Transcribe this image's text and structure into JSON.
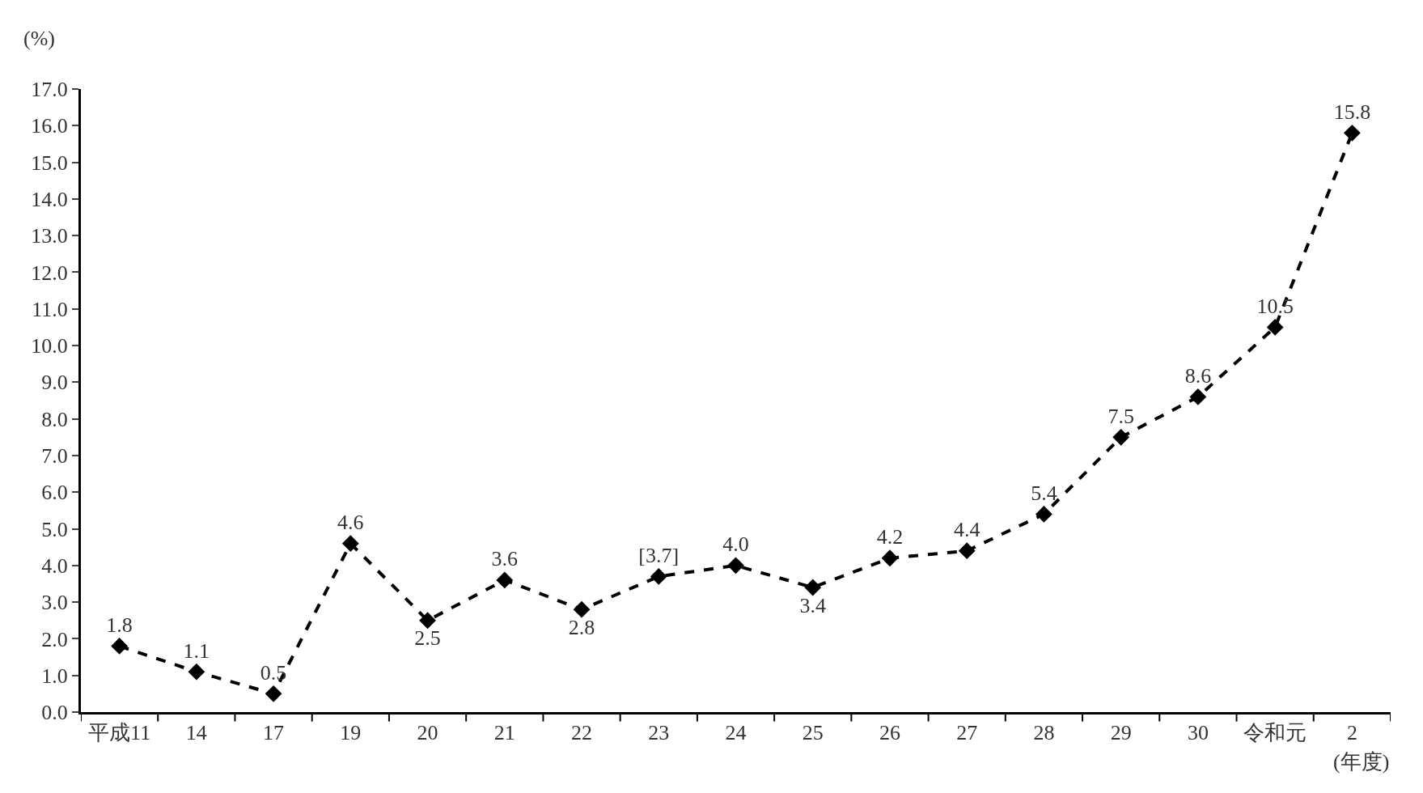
{
  "chart_data": {
    "type": "line",
    "xlabel": "(年度)",
    "ylabel": "(%)",
    "categories": [
      "平成11",
      "14",
      "17",
      "19",
      "20",
      "21",
      "22",
      "23",
      "24",
      "25",
      "26",
      "27",
      "28",
      "29",
      "30",
      "令和元",
      "2"
    ],
    "series": [
      {
        "color": "#000000",
        "values": [
          1.8,
          1.1,
          0.5,
          4.6,
          2.5,
          3.6,
          2.8,
          3.7,
          4.0,
          3.4,
          4.2,
          4.4,
          5.4,
          7.5,
          8.6,
          10.5,
          15.8
        ],
        "value_labels": [
          "1.8",
          "1.1",
          "0.5",
          "4.6",
          "2.5",
          "3.6",
          "2.8",
          "[3.7]",
          "4.0",
          "3.4",
          "4.2",
          "4.4",
          "5.4",
          "7.5",
          "8.6",
          "10.5",
          "15.8"
        ]
      }
    ],
    "ylim": [
      0,
      17
    ],
    "yticks": [
      {
        "value": 0,
        "label": "0.0"
      },
      {
        "value": 1,
        "label": "1.0"
      },
      {
        "value": 2,
        "label": "2.0"
      },
      {
        "value": 3,
        "label": "3.0"
      },
      {
        "value": 4,
        "label": "4.0"
      },
      {
        "value": 5,
        "label": "5.0"
      },
      {
        "value": 6,
        "label": "6.0"
      },
      {
        "value": 7,
        "label": "7.0"
      },
      {
        "value": 8,
        "label": "8.0"
      },
      {
        "value": 9,
        "label": "9.0"
      },
      {
        "value": 10,
        "label": "10.0"
      },
      {
        "value": 11,
        "label": "11.0"
      },
      {
        "value": 12,
        "label": "12.0"
      },
      {
        "value": 13,
        "label": "13.0"
      },
      {
        "value": 14,
        "label": "14.0"
      },
      {
        "value": 15,
        "label": "15.0"
      },
      {
        "value": 16,
        "label": "16.0"
      },
      {
        "value": 17,
        "label": "17.0"
      }
    ],
    "marker": "diamond",
    "line_style": "dashed"
  }
}
